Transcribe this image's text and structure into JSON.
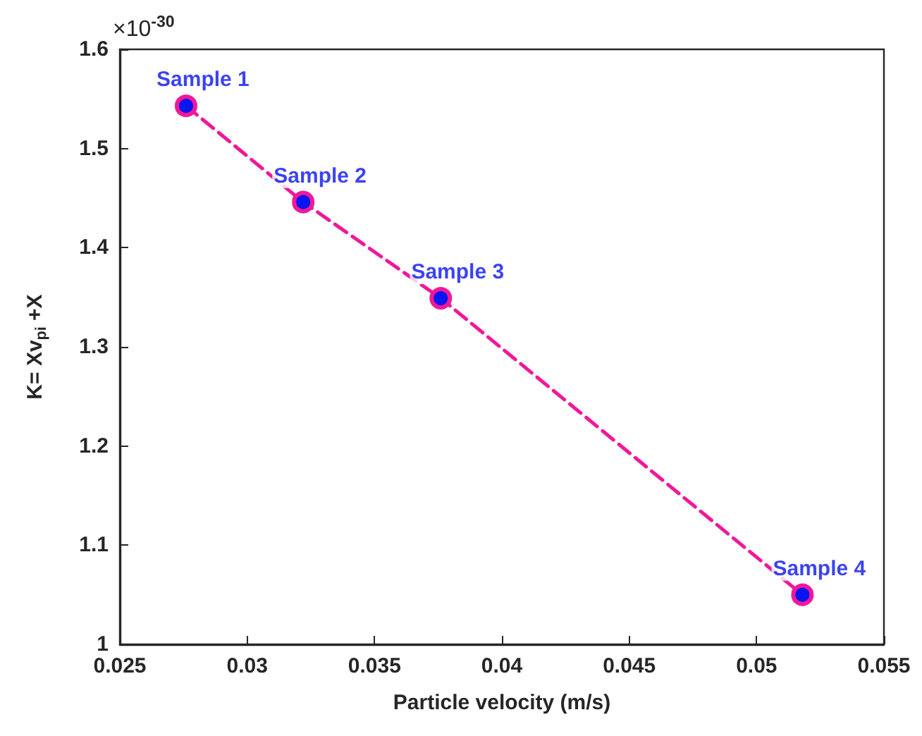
{
  "chart_data": {
    "type": "line",
    "xlabel": "Particle velocity (m/s)",
    "ylabel": "K= Xv$_{pi}$ +X",
    "x": [
      0.0276,
      0.0322,
      0.0376,
      0.0518
    ],
    "series": [
      {
        "color": "#f0189a",
        "values": [
          1.543,
          1.446,
          1.349,
          1.05
        ]
      }
    ],
    "marker": "circle",
    "line_style": "dashed",
    "grid": false,
    "xlim": [
      0.025,
      0.055
    ],
    "xticks": [
      0.025,
      0.03,
      0.035,
      0.04,
      0.045,
      0.05,
      0.055
    ],
    "ylim": [
      1,
      1.6
    ],
    "yticks": [
      1,
      1.1,
      1.2,
      1.3,
      1.4,
      1.5,
      1.6
    ],
    "annotations": [
      "×10$^{-30}$",
      {
        "text": "Sample 1",
        "x": 0.0276,
        "y": 1.543
      },
      {
        "text": "Sample 2",
        "x": 0.0322,
        "y": 1.446
      },
      {
        "text": "Sample 3",
        "x": 0.0376,
        "y": 1.349
      },
      {
        "text": "Sample 4",
        "x": 0.0518,
        "y": 1.05
      }
    ]
  }
}
